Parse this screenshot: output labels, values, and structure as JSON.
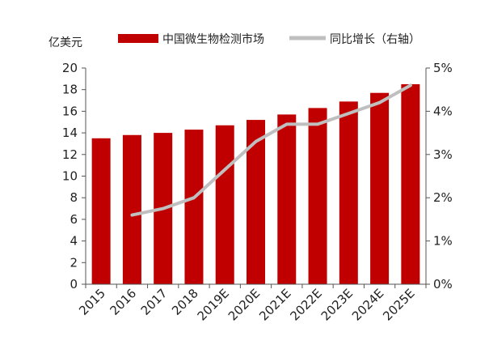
{
  "chart_data": {
    "type": "bar",
    "unit_label": "亿美元",
    "categories": [
      "2015",
      "2016",
      "2017",
      "2018",
      "2019E",
      "2020E",
      "2021E",
      "2022E",
      "2023E",
      "2024E",
      "2025E"
    ],
    "series": [
      {
        "name": "中国微生物检测市场",
        "type": "bar",
        "axis": "left",
        "color": "#c00000",
        "values": [
          13.5,
          13.8,
          14.0,
          14.3,
          14.7,
          15.2,
          15.7,
          16.3,
          16.9,
          17.7,
          18.5
        ]
      },
      {
        "name": "同比增长（右轴）",
        "type": "line",
        "axis": "right",
        "color": "#bfbfbf",
        "values": [
          null,
          1.6,
          1.75,
          2.0,
          2.65,
          3.3,
          3.7,
          3.7,
          3.95,
          4.2,
          4.6
        ]
      }
    ],
    "left_axis": {
      "ylim": [
        0,
        20
      ],
      "ticks": [
        "0",
        "2",
        "4",
        "6",
        "8",
        "10",
        "12",
        "14",
        "16",
        "18",
        "20"
      ]
    },
    "right_axis": {
      "ylim": [
        0,
        5
      ],
      "ticks": [
        "0%",
        "1%",
        "2%",
        "3%",
        "4%",
        "5%"
      ]
    },
    "grid": false,
    "legend_position": "top"
  }
}
